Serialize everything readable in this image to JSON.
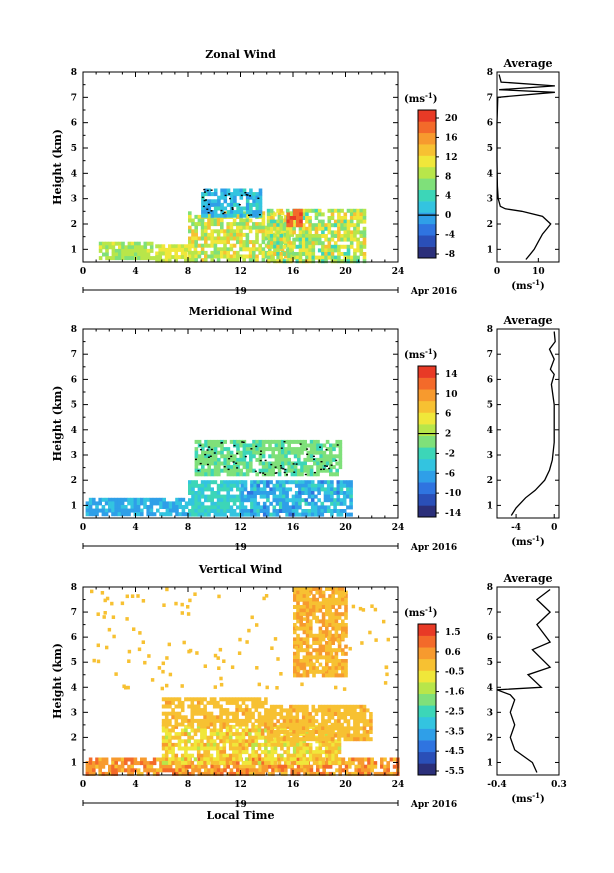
{
  "colors": {
    "colormap": [
      "#2b2f7a",
      "#2a4fb8",
      "#2f74e0",
      "#2f9fe8",
      "#33c4e0",
      "#3cd6b8",
      "#7fe07a",
      "#b8e64a",
      "#f0e73a",
      "#f7c132",
      "#f79a2e",
      "#f36a2a",
      "#e83a26"
    ],
    "missing": "#ffffff",
    "frame": "#000000"
  },
  "shared": {
    "date_label": "19",
    "month_label": "Apr 2016",
    "ylabel": "Height (km)",
    "xlabel_bottom": "Local Time",
    "avg_title": "Average",
    "unit_label": "(ms",
    "unit_sup": "-1",
    "unit_close": ")"
  },
  "chart_data": [
    {
      "type": "heatmap",
      "id": "zonal",
      "title": "Zonal Wind",
      "ylabel": "Height (km)",
      "xlim": [
        0,
        24
      ],
      "ylim": [
        0.5,
        8
      ],
      "xticks": [
        0,
        4,
        8,
        12,
        16,
        20,
        24
      ],
      "yticks": [
        1,
        2,
        3,
        4,
        5,
        6,
        7,
        8
      ],
      "colorbar": {
        "ticks": [
          "20",
          "16",
          "12",
          "8",
          "4",
          "0",
          "-4",
          "-8"
        ],
        "zero_line": "0",
        "unit": "ms-1",
        "range": [
          -10,
          22
        ]
      },
      "field_blobs": [
        {
          "t": [
            1.2,
            5.5
          ],
          "h": [
            0.6,
            1.3
          ],
          "v": [
            6,
            10
          ]
        },
        {
          "t": [
            5.5,
            8.5
          ],
          "h": [
            0.6,
            1.2
          ],
          "v": [
            8,
            12
          ]
        },
        {
          "t": [
            8.0,
            16.0
          ],
          "h": [
            0.6,
            2.5
          ],
          "v": [
            5,
            14
          ]
        },
        {
          "t": [
            14.0,
            21.5
          ],
          "h": [
            0.6,
            2.6
          ],
          "v": [
            4,
            13
          ]
        },
        {
          "t": [
            15.5,
            16.5
          ],
          "h": [
            2.0,
            2.6
          ],
          "v": [
            18,
            20
          ]
        },
        {
          "t": [
            9.0,
            13.5
          ],
          "h": [
            2.3,
            3.4
          ],
          "v": [
            -2,
            3
          ]
        }
      ],
      "avg_profile": {
        "xlim": [
          0,
          15
        ],
        "xticks": [
          "0",
          "10"
        ],
        "xlabel": "(ms-1)",
        "points": [
          [
            7,
            0.6
          ],
          [
            8,
            0.8
          ],
          [
            9,
            1.0
          ],
          [
            10,
            1.3
          ],
          [
            11,
            1.6
          ],
          [
            12,
            1.8
          ],
          [
            13,
            2.0
          ],
          [
            11,
            2.3
          ],
          [
            6,
            2.5
          ],
          [
            2,
            2.6
          ],
          [
            0.8,
            2.7
          ],
          [
            0.3,
            3.0
          ],
          [
            0.1,
            3.5
          ],
          [
            0.0,
            4.5
          ],
          [
            0.0,
            6.0
          ],
          [
            0.2,
            7.0
          ],
          [
            14,
            7.2
          ],
          [
            0.5,
            7.3
          ],
          [
            14,
            7.45
          ],
          [
            1,
            7.6
          ],
          [
            0.5,
            7.9
          ]
        ]
      }
    },
    {
      "type": "heatmap",
      "id": "meridional",
      "title": "Meridional Wind",
      "ylabel": "Height (km)",
      "xlim": [
        0,
        24
      ],
      "ylim": [
        0.5,
        8
      ],
      "xticks": [
        0,
        4,
        8,
        12,
        16,
        20,
        24
      ],
      "yticks": [
        1,
        2,
        3,
        4,
        5,
        6,
        7,
        8
      ],
      "colorbar": {
        "ticks": [
          "14",
          "10",
          "6",
          "2",
          "-2",
          "-6",
          "-10",
          "-14"
        ],
        "zero_line": "2",
        "unit": "ms-1",
        "range": [
          -16,
          16
        ]
      },
      "field_blobs": [
        {
          "t": [
            0.2,
            8.0
          ],
          "h": [
            0.6,
            1.3
          ],
          "v": [
            -8,
            -5
          ]
        },
        {
          "t": [
            8.0,
            12.0
          ],
          "h": [
            0.6,
            2.0
          ],
          "v": [
            -5,
            -2
          ]
        },
        {
          "t": [
            12.0,
            20.5
          ],
          "h": [
            0.6,
            2.0
          ],
          "v": [
            -9,
            -3
          ]
        },
        {
          "t": [
            8.5,
            19.5
          ],
          "h": [
            2.2,
            3.6
          ],
          "v": [
            -2,
            1
          ]
        }
      ],
      "avg_profile": {
        "xlim": [
          -6,
          0.5
        ],
        "xticks": [
          "-4",
          "0"
        ],
        "xlabel": "(ms-1)",
        "points": [
          [
            -4.5,
            0.6
          ],
          [
            -4.0,
            0.9
          ],
          [
            -3.0,
            1.3
          ],
          [
            -2.0,
            1.6
          ],
          [
            -1.0,
            2.0
          ],
          [
            -0.5,
            2.4
          ],
          [
            -0.2,
            2.8
          ],
          [
            0.0,
            3.5
          ],
          [
            0.0,
            5.0
          ],
          [
            -0.3,
            5.8
          ],
          [
            0.0,
            6.2
          ],
          [
            -0.4,
            6.4
          ],
          [
            0.0,
            6.8
          ],
          [
            -0.5,
            7.2
          ],
          [
            0.1,
            7.5
          ],
          [
            0.0,
            7.9
          ]
        ]
      }
    },
    {
      "type": "heatmap",
      "id": "vertical",
      "title": "Vertical Wind",
      "ylabel": "Height (km)",
      "xlabel": "Local Time",
      "xlim": [
        0,
        24
      ],
      "ylim": [
        0.5,
        8
      ],
      "xticks": [
        0,
        4,
        8,
        12,
        16,
        20,
        24
      ],
      "yticks": [
        1,
        2,
        3,
        4,
        5,
        6,
        7,
        8
      ],
      "colorbar": {
        "ticks": [
          "1.5",
          "0.6",
          "-0.5",
          "-1.6",
          "-2.5",
          "-3.5",
          "-4.5",
          "-5.5"
        ],
        "zero_line": null,
        "unit": "ms-1",
        "range": [
          -6,
          2
        ]
      },
      "field_blobs": [
        {
          "t": [
            0.2,
            24
          ],
          "h": [
            0.6,
            1.2
          ],
          "v": [
            -0.2,
            1.2
          ]
        },
        {
          "t": [
            6.0,
            19.5
          ],
          "h": [
            1.0,
            2.5
          ],
          "v": [
            -1.2,
            0.3
          ]
        },
        {
          "t": [
            6.0,
            14.0
          ],
          "h": [
            2.5,
            3.6
          ],
          "v": [
            -0.2,
            0.2
          ]
        },
        {
          "t": [
            14.0,
            22.0
          ],
          "h": [
            2.0,
            3.3
          ],
          "v": [
            -0.2,
            0.2
          ]
        },
        {
          "t": [
            16.0,
            20.0
          ],
          "h": [
            4.5,
            8.0
          ],
          "v": [
            -0.1,
            0.3
          ]
        }
      ],
      "avg_profile": {
        "xlim": [
          -0.4,
          0.3
        ],
        "xticks": [
          "-0.4",
          "0.3"
        ],
        "xlabel": "(ms-1)",
        "points": [
          [
            0.05,
            0.6
          ],
          [
            0.0,
            1.0
          ],
          [
            -0.2,
            1.5
          ],
          [
            -0.25,
            2.0
          ],
          [
            -0.2,
            2.5
          ],
          [
            -0.25,
            3.0
          ],
          [
            -0.2,
            3.5
          ],
          [
            -0.25,
            3.7
          ],
          [
            -0.4,
            3.9
          ],
          [
            0.1,
            4.0
          ],
          [
            -0.05,
            4.5
          ],
          [
            0.2,
            4.8
          ],
          [
            0.0,
            5.5
          ],
          [
            0.2,
            5.8
          ],
          [
            0.05,
            6.5
          ],
          [
            0.2,
            7.0
          ],
          [
            0.05,
            7.5
          ],
          [
            0.2,
            7.9
          ]
        ]
      }
    }
  ]
}
